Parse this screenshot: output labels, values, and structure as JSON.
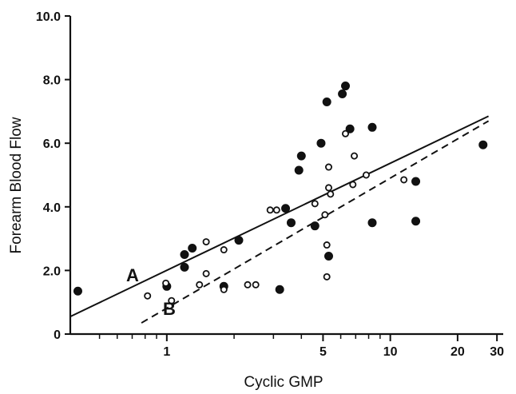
{
  "chart_data": {
    "type": "scatter",
    "xlabel": "Cyclic GMP",
    "ylabel": "Forearm Blood Flow",
    "xscale": "log",
    "xlim": [
      0.37,
      32
    ],
    "ylim": [
      0,
      10
    ],
    "x_ticks": [
      {
        "value": 0.5,
        "label": ""
      },
      {
        "value": 0.6,
        "label": ""
      },
      {
        "value": 0.7,
        "label": ""
      },
      {
        "value": 0.8,
        "label": ""
      },
      {
        "value": 0.9,
        "label": ""
      },
      {
        "value": 1,
        "label": "1"
      },
      {
        "value": 2,
        "label": ""
      },
      {
        "value": 3,
        "label": ""
      },
      {
        "value": 4,
        "label": ""
      },
      {
        "value": 5,
        "label": "5"
      },
      {
        "value": 6,
        "label": ""
      },
      {
        "value": 7,
        "label": ""
      },
      {
        "value": 8,
        "label": ""
      },
      {
        "value": 9,
        "label": ""
      },
      {
        "value": 10,
        "label": "10"
      },
      {
        "value": 20,
        "label": "20"
      },
      {
        "value": 30,
        "label": "30"
      }
    ],
    "y_ticks": [
      {
        "value": 0,
        "label": "0"
      },
      {
        "value": 2,
        "label": "2.0"
      },
      {
        "value": 4,
        "label": "4.0"
      },
      {
        "value": 6,
        "label": "6.0"
      },
      {
        "value": 8,
        "label": "8.0"
      },
      {
        "value": 10,
        "label": "10.0"
      }
    ],
    "grid": false,
    "series": [
      {
        "name": "A",
        "marker": "filled-circle",
        "points": [
          [
            0.4,
            1.35
          ],
          [
            1.0,
            1.5
          ],
          [
            1.2,
            2.1
          ],
          [
            1.2,
            2.5
          ],
          [
            1.3,
            2.7
          ],
          [
            1.8,
            1.5
          ],
          [
            2.1,
            2.95
          ],
          [
            3.2,
            1.4
          ],
          [
            3.4,
            3.95
          ],
          [
            3.6,
            3.5
          ],
          [
            3.9,
            5.15
          ],
          [
            4.0,
            5.6
          ],
          [
            4.6,
            3.4
          ],
          [
            4.9,
            6.0
          ],
          [
            5.2,
            7.3
          ],
          [
            5.3,
            2.45
          ],
          [
            6.1,
            7.55
          ],
          [
            6.3,
            7.8
          ],
          [
            6.6,
            6.45
          ],
          [
            8.3,
            6.5
          ],
          [
            8.3,
            3.5
          ],
          [
            13.0,
            4.8
          ],
          [
            13.0,
            3.55
          ],
          [
            26.0,
            5.95
          ]
        ]
      },
      {
        "name": "B",
        "marker": "open-circle",
        "points": [
          [
            0.82,
            1.2
          ],
          [
            0.99,
            1.6
          ],
          [
            1.05,
            1.05
          ],
          [
            1.4,
            1.55
          ],
          [
            1.5,
            2.9
          ],
          [
            1.5,
            1.9
          ],
          [
            1.8,
            2.65
          ],
          [
            1.8,
            1.4
          ],
          [
            2.3,
            1.55
          ],
          [
            2.5,
            1.55
          ],
          [
            2.9,
            3.9
          ],
          [
            3.1,
            3.9
          ],
          [
            4.6,
            4.1
          ],
          [
            5.1,
            3.75
          ],
          [
            5.2,
            1.8
          ],
          [
            5.2,
            2.8
          ],
          [
            5.3,
            5.25
          ],
          [
            5.3,
            4.6
          ],
          [
            5.4,
            4.4
          ],
          [
            6.3,
            6.3
          ],
          [
            6.8,
            4.7
          ],
          [
            6.9,
            5.6
          ],
          [
            7.8,
            5.0
          ],
          [
            11.5,
            4.85
          ]
        ]
      }
    ],
    "lines": [
      {
        "name": "A",
        "style": "solid",
        "from": [
          0.37,
          0.55
        ],
        "to": [
          27.5,
          6.85
        ]
      },
      {
        "name": "B",
        "style": "dashed",
        "from": [
          0.77,
          0.35
        ],
        "to": [
          27.5,
          6.7
        ]
      }
    ],
    "line_labels": [
      "A",
      "B"
    ]
  }
}
